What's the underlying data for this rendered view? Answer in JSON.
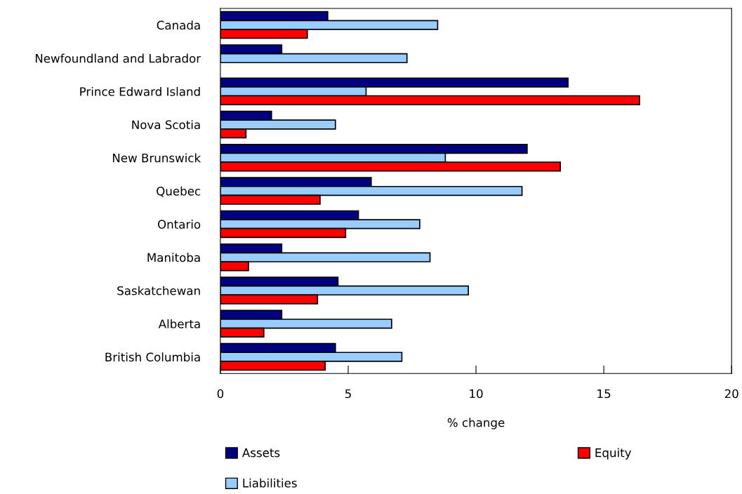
{
  "chart_data": {
    "type": "bar",
    "orientation": "horizontal",
    "xlabel": "% change",
    "categories": [
      "Canada",
      "Newfoundland and Labrador",
      "Prince Edward Island",
      "Nova Scotia",
      "New Brunswick",
      "Quebec",
      "Ontario",
      "Manitoba",
      "Saskatchewan",
      "Alberta",
      "British Columbia"
    ],
    "series": [
      {
        "name": "Assets",
        "color": "#000080",
        "values": [
          4.2,
          2.4,
          13.6,
          2.0,
          12.0,
          5.9,
          5.4,
          2.4,
          4.6,
          2.4,
          4.5
        ]
      },
      {
        "name": "Liabilities",
        "color": "#99ccff",
        "values": [
          8.5,
          7.3,
          5.7,
          4.5,
          8.8,
          11.8,
          7.8,
          8.2,
          9.7,
          6.7,
          7.1
        ]
      },
      {
        "name": "Equity",
        "color": "#ff0000",
        "values": [
          3.4,
          null,
          16.4,
          1.0,
          13.3,
          3.9,
          4.9,
          1.1,
          3.8,
          1.7,
          4.1
        ]
      }
    ],
    "xlim": [
      0,
      20
    ],
    "xticks": [
      0,
      5,
      10,
      15,
      20
    ],
    "grid": false,
    "legend": "bottom"
  }
}
